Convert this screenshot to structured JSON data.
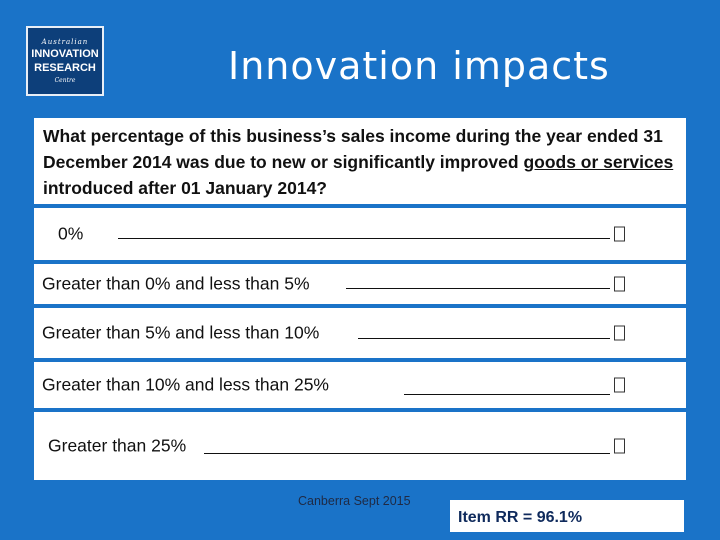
{
  "logo": {
    "line1": "Australian",
    "line2a": "INNOVATION",
    "line2b": "RESEARCH",
    "line3": "Centre"
  },
  "slide_title": "Innovation impacts",
  "question": {
    "part1": "What percentage of this business’s sales income during the year ended 31 December 2014 was due to new or significantly improved ",
    "underlined": "goods or services",
    "part2": " introduced after 01 January 2014?"
  },
  "options": [
    {
      "label": "0%",
      "box": "☐"
    },
    {
      "label": "Greater than 0% and less than 5%",
      "box": "☐"
    },
    {
      "label": "Greater than 5% and less than 10%",
      "box": "☐"
    },
    {
      "label": "Greater than 10% and less than 25%",
      "box": "☐"
    },
    {
      "label": "Greater than 25%",
      "box": "☐"
    }
  ],
  "footer_text": "Canberra Sept 2015",
  "response_rate": "Item RR = 96.1%",
  "colors": {
    "background": "#1a73c8",
    "logo_bg": "#0d3f7a",
    "panel": "#ffffff"
  }
}
